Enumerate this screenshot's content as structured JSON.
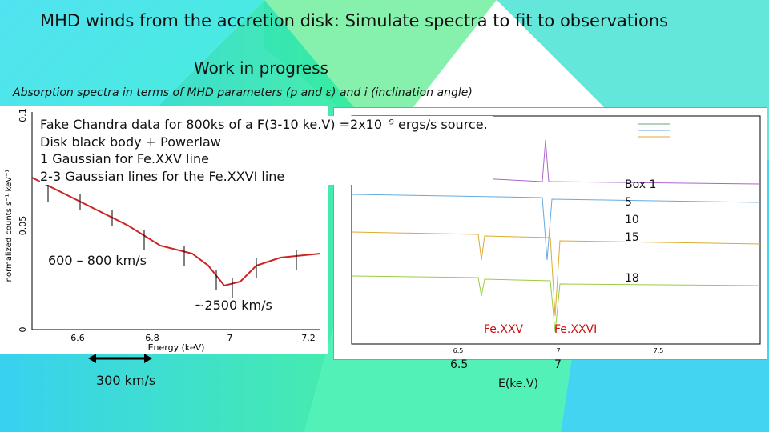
{
  "title": "MHD winds from the accretion disk: Simulate spectra to fit to observations",
  "subtitle": "Work in progress",
  "heading": "Absorption spectra in terms of MHD parameters (p and ε) and i (inclination angle)",
  "notes": [
    "Fake Chandra data for 800ks of a F(3-10 ke.V) =2x10⁻⁹ ergs/s source.",
    "Disk black body + Powerlaw",
    "1 Gaussian for Fe.XXV line",
    "2-3 Gaussian lines for the Fe.XXVI line"
  ],
  "left_plot": {
    "x_label": "Energy (keV)",
    "y_label": "normalized counts s⁻¹ keV⁻¹",
    "xticks": [
      "6.6",
      "6.8",
      "7",
      "7.2"
    ],
    "yticks": [
      "0",
      "0.05",
      "0.1"
    ]
  },
  "right_plot": {
    "xticks": [
      "6.5",
      "7",
      "7.5"
    ]
  },
  "annotations": {
    "width1": "600 – 800 km/s",
    "width2": "~2500 km/s",
    "scale": "300 km/s",
    "boxes": [
      "Box 1",
      "5",
      "10",
      "15",
      "18"
    ],
    "fe25": "Fe.XXV",
    "fe26": "Fe.XXVI",
    "e1": "6.5",
    "e2": "7",
    "energy": "E(ke.V)"
  }
}
